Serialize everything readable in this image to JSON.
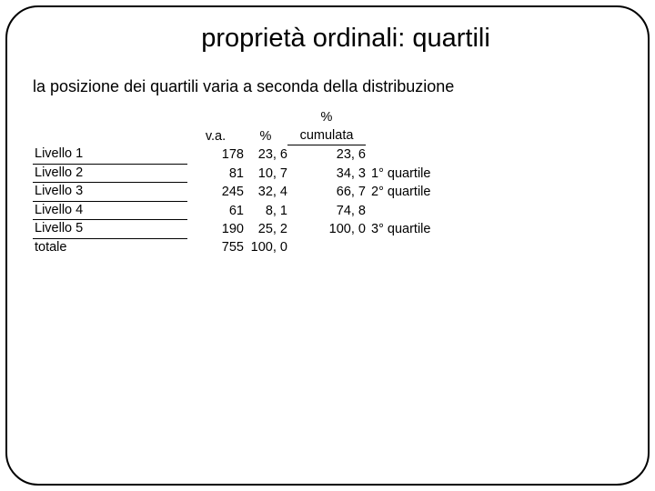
{
  "title": "proprietà ordinali: quartili",
  "subtitle": "la posizione dei quartili varia a seconda della distribuzione",
  "headers": {
    "va": "v.a.",
    "pct": "%",
    "cum1": "%",
    "cum2": "cumulata"
  },
  "rows": [
    {
      "label": "Livello 1",
      "va": "178",
      "pct": "23, 6",
      "cum": "23, 6",
      "note": ""
    },
    {
      "label": "Livello 2",
      "va": "81",
      "pct": "10, 7",
      "cum": "34, 3",
      "note": "1° quartile"
    },
    {
      "label": "Livello 3",
      "va": "245",
      "pct": "32, 4",
      "cum": "66, 7",
      "note": "2° quartile"
    },
    {
      "label": "Livello 4",
      "va": "61",
      "pct": "8, 1",
      "cum": "74, 8",
      "note": ""
    },
    {
      "label": "Livello 5",
      "va": "190",
      "pct": "25, 2",
      "cum": "100, 0",
      "note": "3° quartile"
    }
  ],
  "total": {
    "label": "totale",
    "va": "755",
    "pct": "100, 0",
    "cum": "",
    "note": ""
  }
}
